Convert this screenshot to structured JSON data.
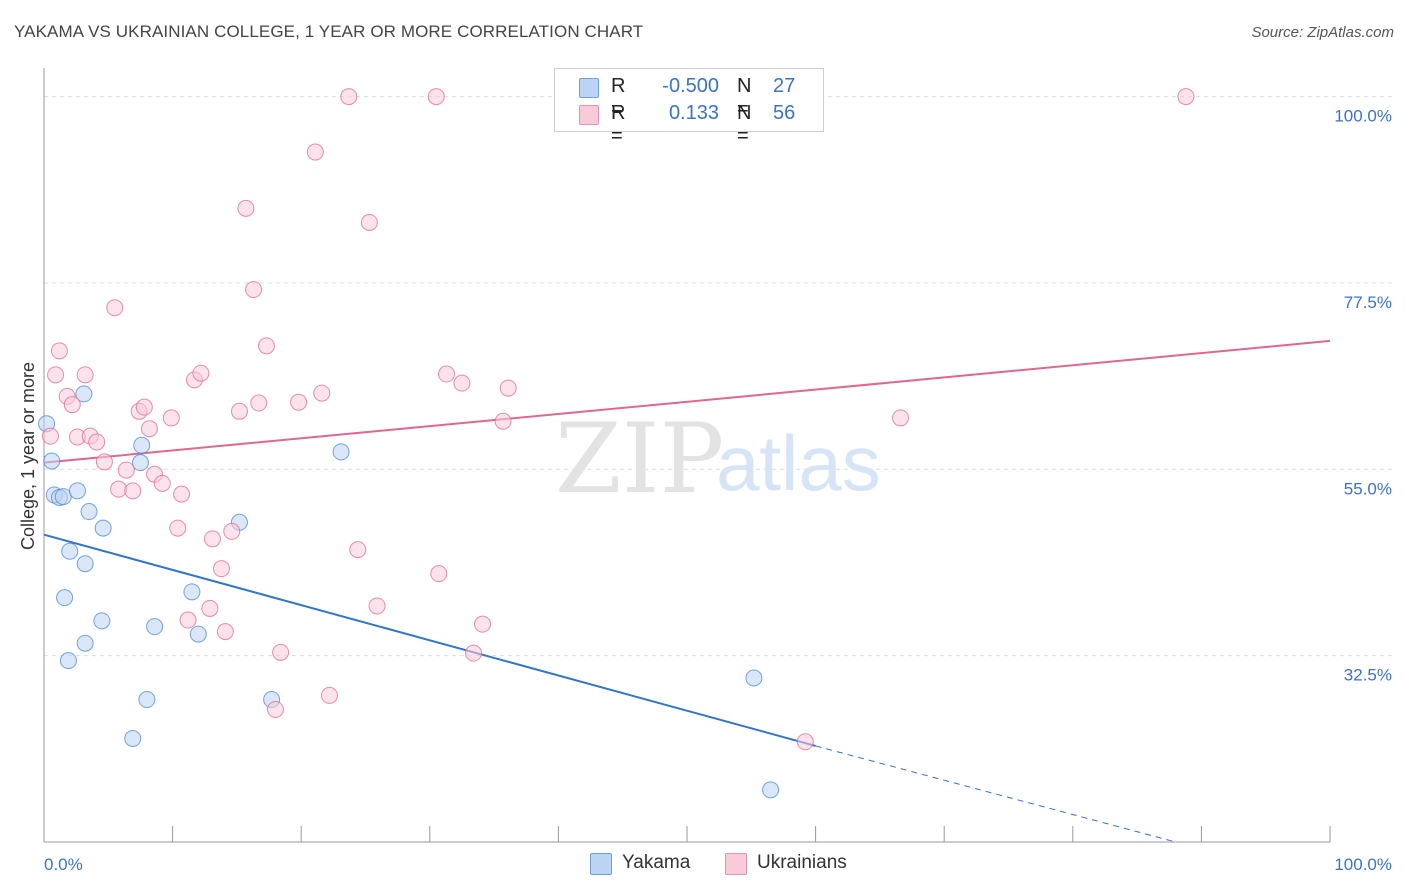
{
  "header": {
    "title": "YAKAMA VS UKRAINIAN COLLEGE, 1 YEAR OR MORE CORRELATION CHART",
    "source": "Source: ZipAtlas.com"
  },
  "watermark": {
    "zip": "ZIP",
    "atlas": "atlas"
  },
  "legend": {
    "rows": [
      {
        "r_label": "R =",
        "r_value": "-0.500",
        "n_label": "N =",
        "n_value": "27",
        "color": "#aac8f0",
        "border": "#6f9fe0"
      },
      {
        "r_label": "R =",
        "r_value": "0.133",
        "n_label": "N =",
        "n_value": "56",
        "color": "#f7c3d3",
        "border": "#e890ac"
      }
    ]
  },
  "bottom_legend": {
    "items": [
      "Yakama",
      "Ukrainians"
    ]
  },
  "chart_data": {
    "type": "scatter",
    "title": "YAKAMA VS UKRAINIAN COLLEGE, 1 YEAR OR MORE CORRELATION CHART",
    "xlabel": "",
    "ylabel": "College, 1 year or more",
    "xlim": [
      0,
      100
    ],
    "ylim": [
      10,
      102
    ],
    "x_tick_labels": {
      "left": "0.0%",
      "right": "100.0%"
    },
    "y_ticks": [
      {
        "value": 100,
        "label": "100.0%"
      },
      {
        "value": 77.5,
        "label": "77.5%"
      },
      {
        "value": 55,
        "label": "55.0%"
      },
      {
        "value": 32.5,
        "label": "32.5%"
      }
    ],
    "colors": {
      "yakama": "#4a86d8",
      "yakama_fill": "#bcd4f4",
      "ukrainians": "#e06890",
      "ukrainians_fill": "#f9cbd9"
    },
    "series": [
      {
        "name": "Yakama",
        "points": [
          [
            0.2,
            60.5
          ],
          [
            0.6,
            56.0
          ],
          [
            0.8,
            51.9
          ],
          [
            1.2,
            51.6
          ],
          [
            1.5,
            51.7
          ],
          [
            2.6,
            52.4
          ],
          [
            2.0,
            45.1
          ],
          [
            3.1,
            64.1
          ],
          [
            3.5,
            49.9
          ],
          [
            4.6,
            47.9
          ],
          [
            3.2,
            43.6
          ],
          [
            1.6,
            39.5
          ],
          [
            4.5,
            36.7
          ],
          [
            3.2,
            34.0
          ],
          [
            1.9,
            31.9
          ],
          [
            7.6,
            57.9
          ],
          [
            7.5,
            55.8
          ],
          [
            8.6,
            36.0
          ],
          [
            8.0,
            27.2
          ],
          [
            11.5,
            40.2
          ],
          [
            12.0,
            35.1
          ],
          [
            15.2,
            48.6
          ],
          [
            17.7,
            27.2
          ],
          [
            6.9,
            22.5
          ],
          [
            23.1,
            57.1
          ],
          [
            55.2,
            29.8
          ],
          [
            56.5,
            16.3
          ]
        ]
      },
      {
        "name": "Ukrainians",
        "points": [
          [
            0.5,
            59.0
          ],
          [
            0.9,
            66.4
          ],
          [
            1.2,
            69.3
          ],
          [
            1.8,
            63.8
          ],
          [
            2.2,
            62.8
          ],
          [
            2.6,
            58.9
          ],
          [
            3.2,
            66.4
          ],
          [
            3.6,
            59.0
          ],
          [
            4.1,
            58.3
          ],
          [
            4.7,
            55.9
          ],
          [
            5.5,
            74.5
          ],
          [
            5.8,
            52.6
          ],
          [
            6.4,
            54.9
          ],
          [
            6.9,
            52.4
          ],
          [
            7.4,
            62.0
          ],
          [
            7.8,
            62.5
          ],
          [
            8.2,
            59.9
          ],
          [
            8.6,
            54.4
          ],
          [
            9.2,
            53.3
          ],
          [
            9.9,
            61.2
          ],
          [
            10.4,
            47.9
          ],
          [
            10.7,
            52.0
          ],
          [
            11.2,
            36.8
          ],
          [
            11.7,
            65.8
          ],
          [
            12.2,
            66.6
          ],
          [
            12.9,
            38.2
          ],
          [
            13.1,
            46.6
          ],
          [
            13.8,
            43.0
          ],
          [
            14.1,
            35.4
          ],
          [
            14.6,
            47.5
          ],
          [
            15.2,
            62.0
          ],
          [
            15.7,
            86.5
          ],
          [
            16.3,
            76.7
          ],
          [
            16.7,
            63.0
          ],
          [
            17.3,
            69.9
          ],
          [
            18.0,
            26.0
          ],
          [
            18.4,
            32.9
          ],
          [
            19.8,
            63.1
          ],
          [
            21.1,
            93.3
          ],
          [
            21.6,
            64.2
          ],
          [
            22.2,
            27.7
          ],
          [
            23.7,
            100.0
          ],
          [
            24.4,
            45.3
          ],
          [
            25.3,
            84.8
          ],
          [
            25.9,
            38.5
          ],
          [
            30.5,
            100.0
          ],
          [
            30.7,
            42.4
          ],
          [
            31.3,
            66.5
          ],
          [
            32.5,
            65.4
          ],
          [
            33.4,
            32.8
          ],
          [
            34.1,
            36.3
          ],
          [
            35.7,
            60.8
          ],
          [
            36.1,
            64.8
          ],
          [
            59.2,
            22.1
          ],
          [
            66.6,
            61.2
          ],
          [
            88.8,
            100.0
          ]
        ]
      }
    ],
    "trendlines": [
      {
        "series": "Yakama",
        "x0": 0,
        "y0": 47.1,
        "x1": 60.0,
        "y1": 21.6,
        "dashed_to_x": 88.0,
        "dashed_to_y": 10.0
      },
      {
        "series": "Ukrainians",
        "x0": 0,
        "y0": 55.8,
        "x1": 100,
        "y1": 70.5
      }
    ]
  }
}
